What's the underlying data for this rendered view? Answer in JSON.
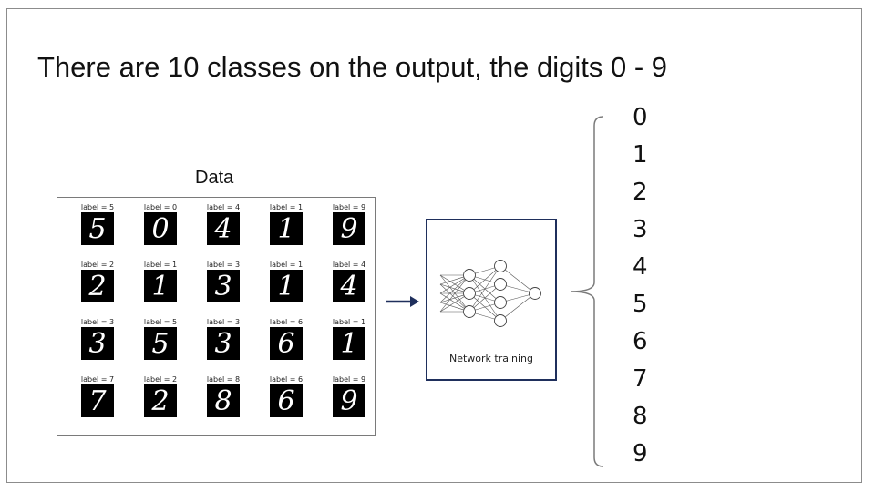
{
  "slide": {
    "title": "There are 10 classes on the output, the digits 0 - 9",
    "data_label": "Data",
    "network_caption": "Network training"
  },
  "samples": [
    {
      "label": "label = 5",
      "digit": "5"
    },
    {
      "label": "label = 0",
      "digit": "0"
    },
    {
      "label": "label = 4",
      "digit": "4"
    },
    {
      "label": "label = 1",
      "digit": "1"
    },
    {
      "label": "label = 9",
      "digit": "9"
    },
    {
      "label": "label = 2",
      "digit": "2"
    },
    {
      "label": "label = 1",
      "digit": "1"
    },
    {
      "label": "label = 3",
      "digit": "3"
    },
    {
      "label": "label = 1",
      "digit": "1"
    },
    {
      "label": "label = 4",
      "digit": "4"
    },
    {
      "label": "label = 3",
      "digit": "3"
    },
    {
      "label": "label = 5",
      "digit": "5"
    },
    {
      "label": "label = 3",
      "digit": "3"
    },
    {
      "label": "label = 6",
      "digit": "6"
    },
    {
      "label": "label = 1",
      "digit": "1"
    },
    {
      "label": "label = 7",
      "digit": "7"
    },
    {
      "label": "label = 2",
      "digit": "2"
    },
    {
      "label": "label = 8",
      "digit": "8"
    },
    {
      "label": "label = 6",
      "digit": "6"
    },
    {
      "label": "label = 9",
      "digit": "9"
    }
  ],
  "outputs": [
    "0",
    "1",
    "2",
    "3",
    "4",
    "5",
    "6",
    "7",
    "8",
    "9"
  ],
  "colors": {
    "arrow": "#1f2f5c",
    "network_border": "#1f2f5c",
    "brace": "#7a7a7a"
  }
}
